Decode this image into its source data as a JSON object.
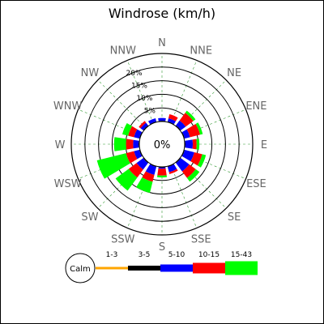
{
  "chart_data": {
    "type": "windrose",
    "title": "Windrose (km/h)",
    "directions": [
      "N",
      "NNE",
      "NE",
      "ENE",
      "E",
      "ESE",
      "SE",
      "SSE",
      "S",
      "SSW",
      "SW",
      "WSW",
      "W",
      "WNW",
      "NW",
      "NNW"
    ],
    "radial_ticks": [
      5,
      10,
      15,
      20
    ],
    "radial_tick_labels": [
      "5%",
      "10%",
      "15%",
      "20%"
    ],
    "rmax": 25,
    "center_label": "0%",
    "calm_label": "Calm",
    "bins": [
      {
        "name": "1-3",
        "color": "#ffa500"
      },
      {
        "name": "3-5",
        "color": "#000000"
      },
      {
        "name": "5-10",
        "color": "#0000ff"
      },
      {
        "name": "10-15",
        "color": "#ff0000"
      },
      {
        "name": "15-43",
        "color": "#00ff00"
      }
    ],
    "values": [
      [
        0.0,
        0.3,
        1.0,
        0.0,
        0.0
      ],
      [
        0.0,
        0.3,
        1.2,
        1.5,
        0.0
      ],
      [
        0.0,
        0.3,
        2.2,
        3.5,
        1.0
      ],
      [
        0.0,
        0.3,
        2.0,
        3.8,
        1.0
      ],
      [
        0.0,
        0.3,
        2.7,
        1.4,
        1.0
      ],
      [
        0.0,
        0.3,
        3.6,
        3.0,
        1.4
      ],
      [
        0.0,
        0.3,
        3.8,
        3.0,
        1.7
      ],
      [
        0.0,
        0.3,
        2.0,
        0.7,
        0.0
      ],
      [
        0.0,
        0.3,
        0.4,
        2.5,
        0.7
      ],
      [
        0.0,
        0.3,
        3.0,
        2.6,
        4.2
      ],
      [
        0.0,
        0.3,
        3.0,
        3.6,
        6.0
      ],
      [
        0.0,
        0.3,
        2.0,
        3.0,
        11.0
      ],
      [
        0.0,
        0.3,
        2.0,
        2.6,
        4.4
      ],
      [
        0.0,
        0.3,
        2.0,
        2.2,
        2.2
      ],
      [
        0.0,
        0.3,
        1.2,
        0.8,
        0.0
      ],
      [
        0.0,
        0.3,
        1.2,
        0.0,
        0.0
      ]
    ]
  }
}
